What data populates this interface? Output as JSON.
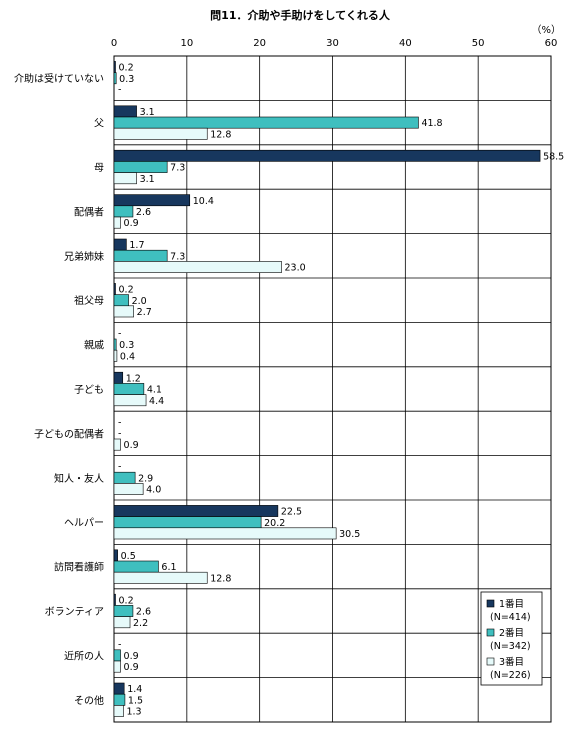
{
  "chart_data": {
    "type": "bar",
    "orientation": "horizontal",
    "title": "問11．介助や手助けをしてくれる人",
    "unit_label": "（%）",
    "xlim": [
      0,
      60
    ],
    "ticks": [
      0,
      10,
      20,
      30,
      40,
      50,
      60
    ],
    "grid": true,
    "legend_position": "bottom-right",
    "categories": [
      "介助は受けていない",
      "父",
      "母",
      "配偶者",
      "兄弟姉妹",
      "祖父母",
      "親戚",
      "子ども",
      "子どもの配偶者",
      "知人・友人",
      "ヘルパー",
      "訪問看護師",
      "ボランティア",
      "近所の人",
      "その他"
    ],
    "series": [
      {
        "name": "1番目",
        "n_label": "(N=414)",
        "color": "#17375e",
        "values": [
          0.2,
          3.1,
          58.5,
          10.4,
          1.7,
          0.2,
          null,
          1.2,
          null,
          null,
          22.5,
          0.5,
          0.2,
          null,
          1.4
        ]
      },
      {
        "name": "2番目",
        "n_label": "(N=342)",
        "color": "#3fbfbf",
        "values": [
          0.3,
          41.8,
          7.3,
          2.6,
          7.3,
          2.0,
          0.3,
          4.1,
          null,
          2.9,
          20.2,
          6.1,
          2.6,
          0.9,
          1.5
        ]
      },
      {
        "name": "3番目",
        "n_label": "(N=226)",
        "color": "#e6fafa",
        "values": [
          null,
          12.8,
          3.1,
          0.9,
          23.0,
          2.7,
          0.4,
          4.4,
          0.9,
          4.0,
          30.5,
          12.8,
          2.2,
          0.9,
          1.3
        ]
      }
    ],
    "missing_label": "-"
  }
}
